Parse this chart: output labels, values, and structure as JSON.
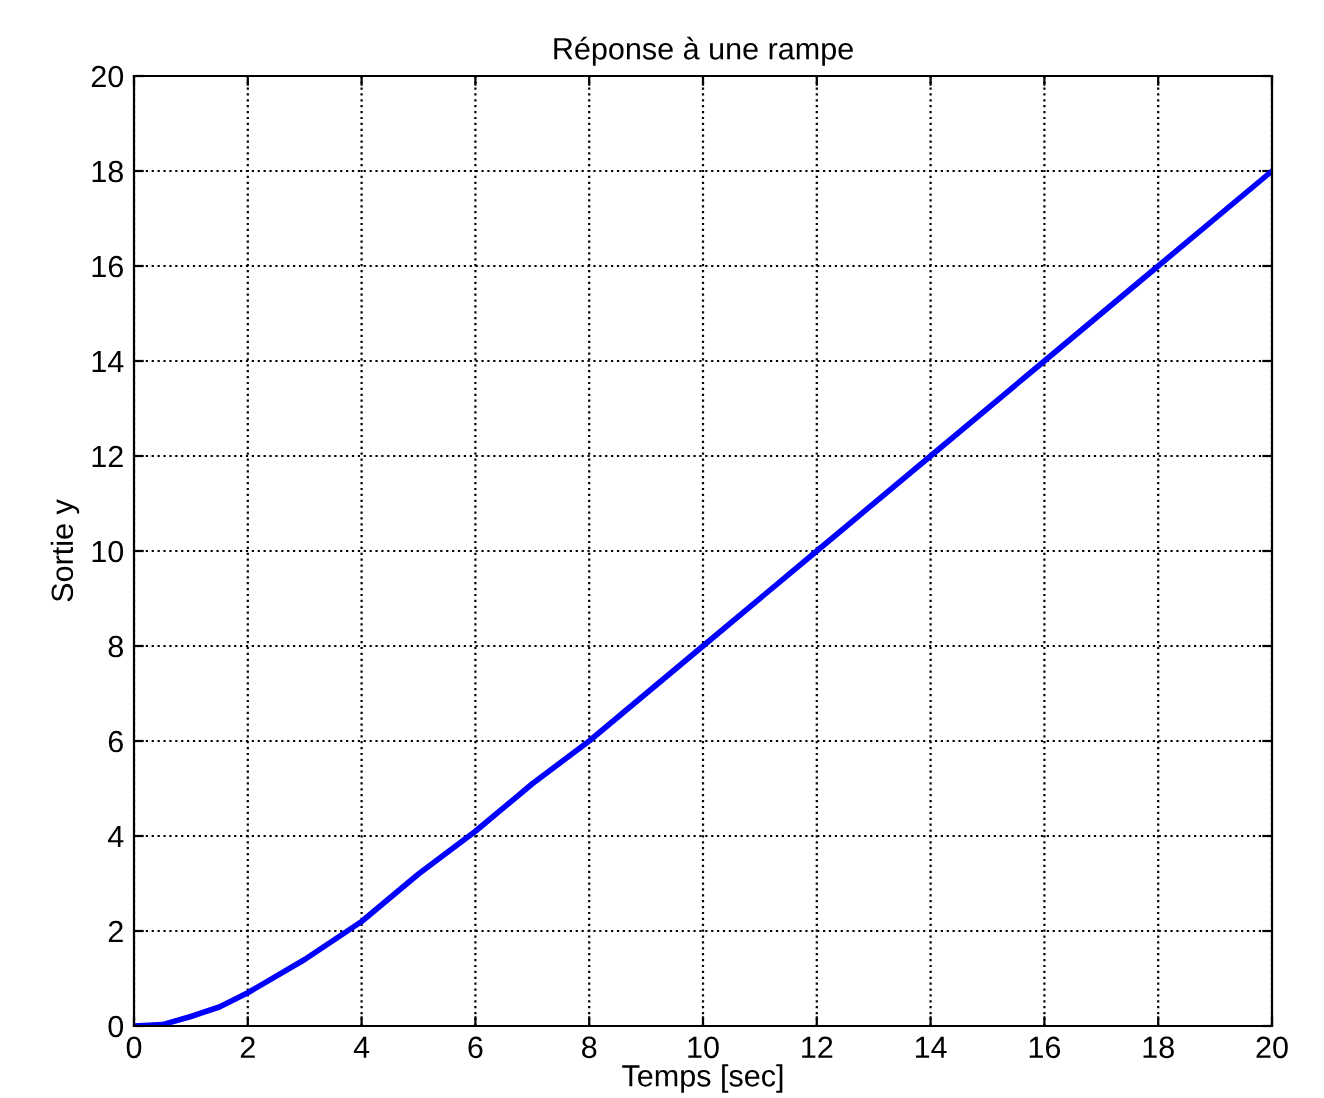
{
  "chart_data": {
    "type": "line",
    "title": "Réponse à une rampe",
    "xlabel": "Temps [sec]",
    "ylabel": "Sortie y",
    "x": [
      0,
      0.5,
      1,
      1.5,
      2,
      3,
      4,
      5,
      6,
      7,
      8,
      10,
      12,
      14,
      16,
      18,
      20
    ],
    "series": [
      {
        "color": "#0000ff",
        "values": [
          0,
          0.03,
          0.2,
          0.4,
          0.7,
          1.4,
          2.2,
          3.2,
          4.1,
          5.1,
          6.0,
          8.0,
          10.0,
          12.0,
          14.0,
          16.0,
          18.0
        ]
      }
    ],
    "xlim": [
      0,
      20
    ],
    "ylim": [
      0,
      20
    ],
    "xticks": [
      0,
      2,
      4,
      6,
      8,
      10,
      12,
      14,
      16,
      18,
      20
    ],
    "yticks": [
      0,
      2,
      4,
      6,
      8,
      10,
      12,
      14,
      16,
      18,
      20
    ],
    "grid": true,
    "line_style": "solid",
    "marker": "none"
  }
}
